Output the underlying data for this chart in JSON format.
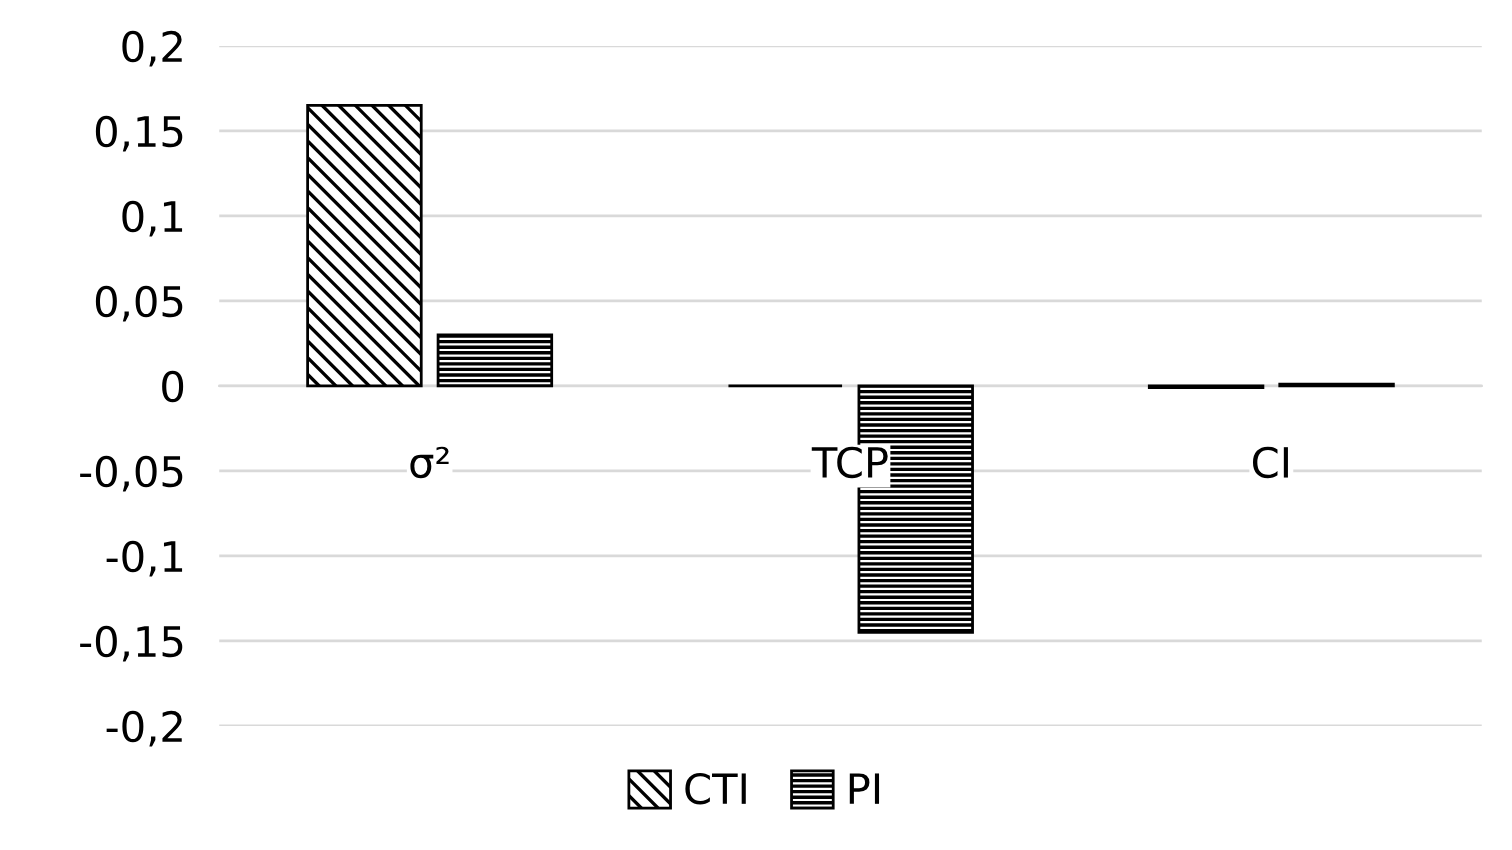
{
  "chart_data": {
    "type": "bar",
    "categories": [
      "σ²",
      "TCP",
      "CI"
    ],
    "series": [
      {
        "name": "CTI",
        "color": "#000000",
        "values": [
          0.165,
          0,
          -0.001
        ]
      },
      {
        "name": "PI",
        "color": "#000000",
        "values": [
          0.03,
          -0.145,
          0.001
        ]
      }
    ],
    "ylim": [
      -0.2,
      0.2
    ],
    "yticks": [
      {
        "value": -0.2,
        "label": "-0,2"
      },
      {
        "value": -0.15,
        "label": "-0,15"
      },
      {
        "value": -0.1,
        "label": "-0,1"
      },
      {
        "value": -0.05,
        "label": "-0,05"
      },
      {
        "value": 0,
        "label": "0"
      },
      {
        "value": 0.05,
        "label": "0,05"
      },
      {
        "value": 0.1,
        "label": "0,1"
      },
      {
        "value": 0.15,
        "label": "0,15"
      },
      {
        "value": 0.2,
        "label": "0,2"
      }
    ],
    "grid": "y",
    "legend": "bottom"
  }
}
